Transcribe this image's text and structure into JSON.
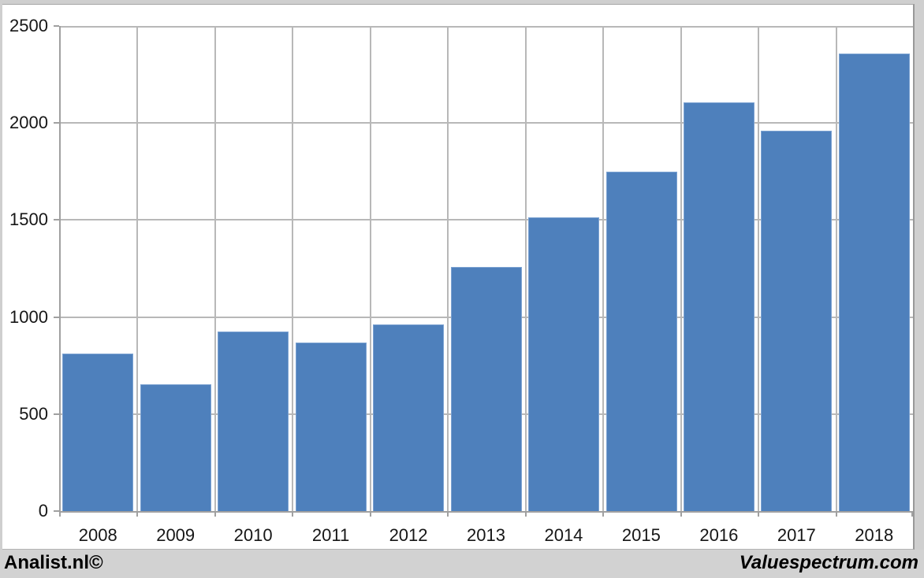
{
  "chart_data": {
    "type": "bar",
    "title": "",
    "categories": [
      "2008",
      "2009",
      "2010",
      "2011",
      "2012",
      "2013",
      "2014",
      "2015",
      "2016",
      "2017",
      "2018"
    ],
    "series": [
      {
        "name": "value",
        "values": [
          810,
          655,
          925,
          870,
          960,
          1260,
          1515,
          1750,
          2105,
          1960,
          2360
        ]
      }
    ],
    "xlabel": "",
    "ylabel": "",
    "ylim": [
      0,
      2500
    ],
    "y_ticks": [
      0,
      500,
      1000,
      1500,
      2000,
      2500
    ],
    "grid": true,
    "legend": false,
    "bar_color": "#4e80bc",
    "gridline_color": "#b8b8b8",
    "axis_color": "#a0a0a0",
    "plot_background": "#ffffff",
    "page_background": "#cfcfcf"
  },
  "footer": {
    "left_brand": "Analist.nl©",
    "right_brand": "Valuespectrum.com"
  }
}
